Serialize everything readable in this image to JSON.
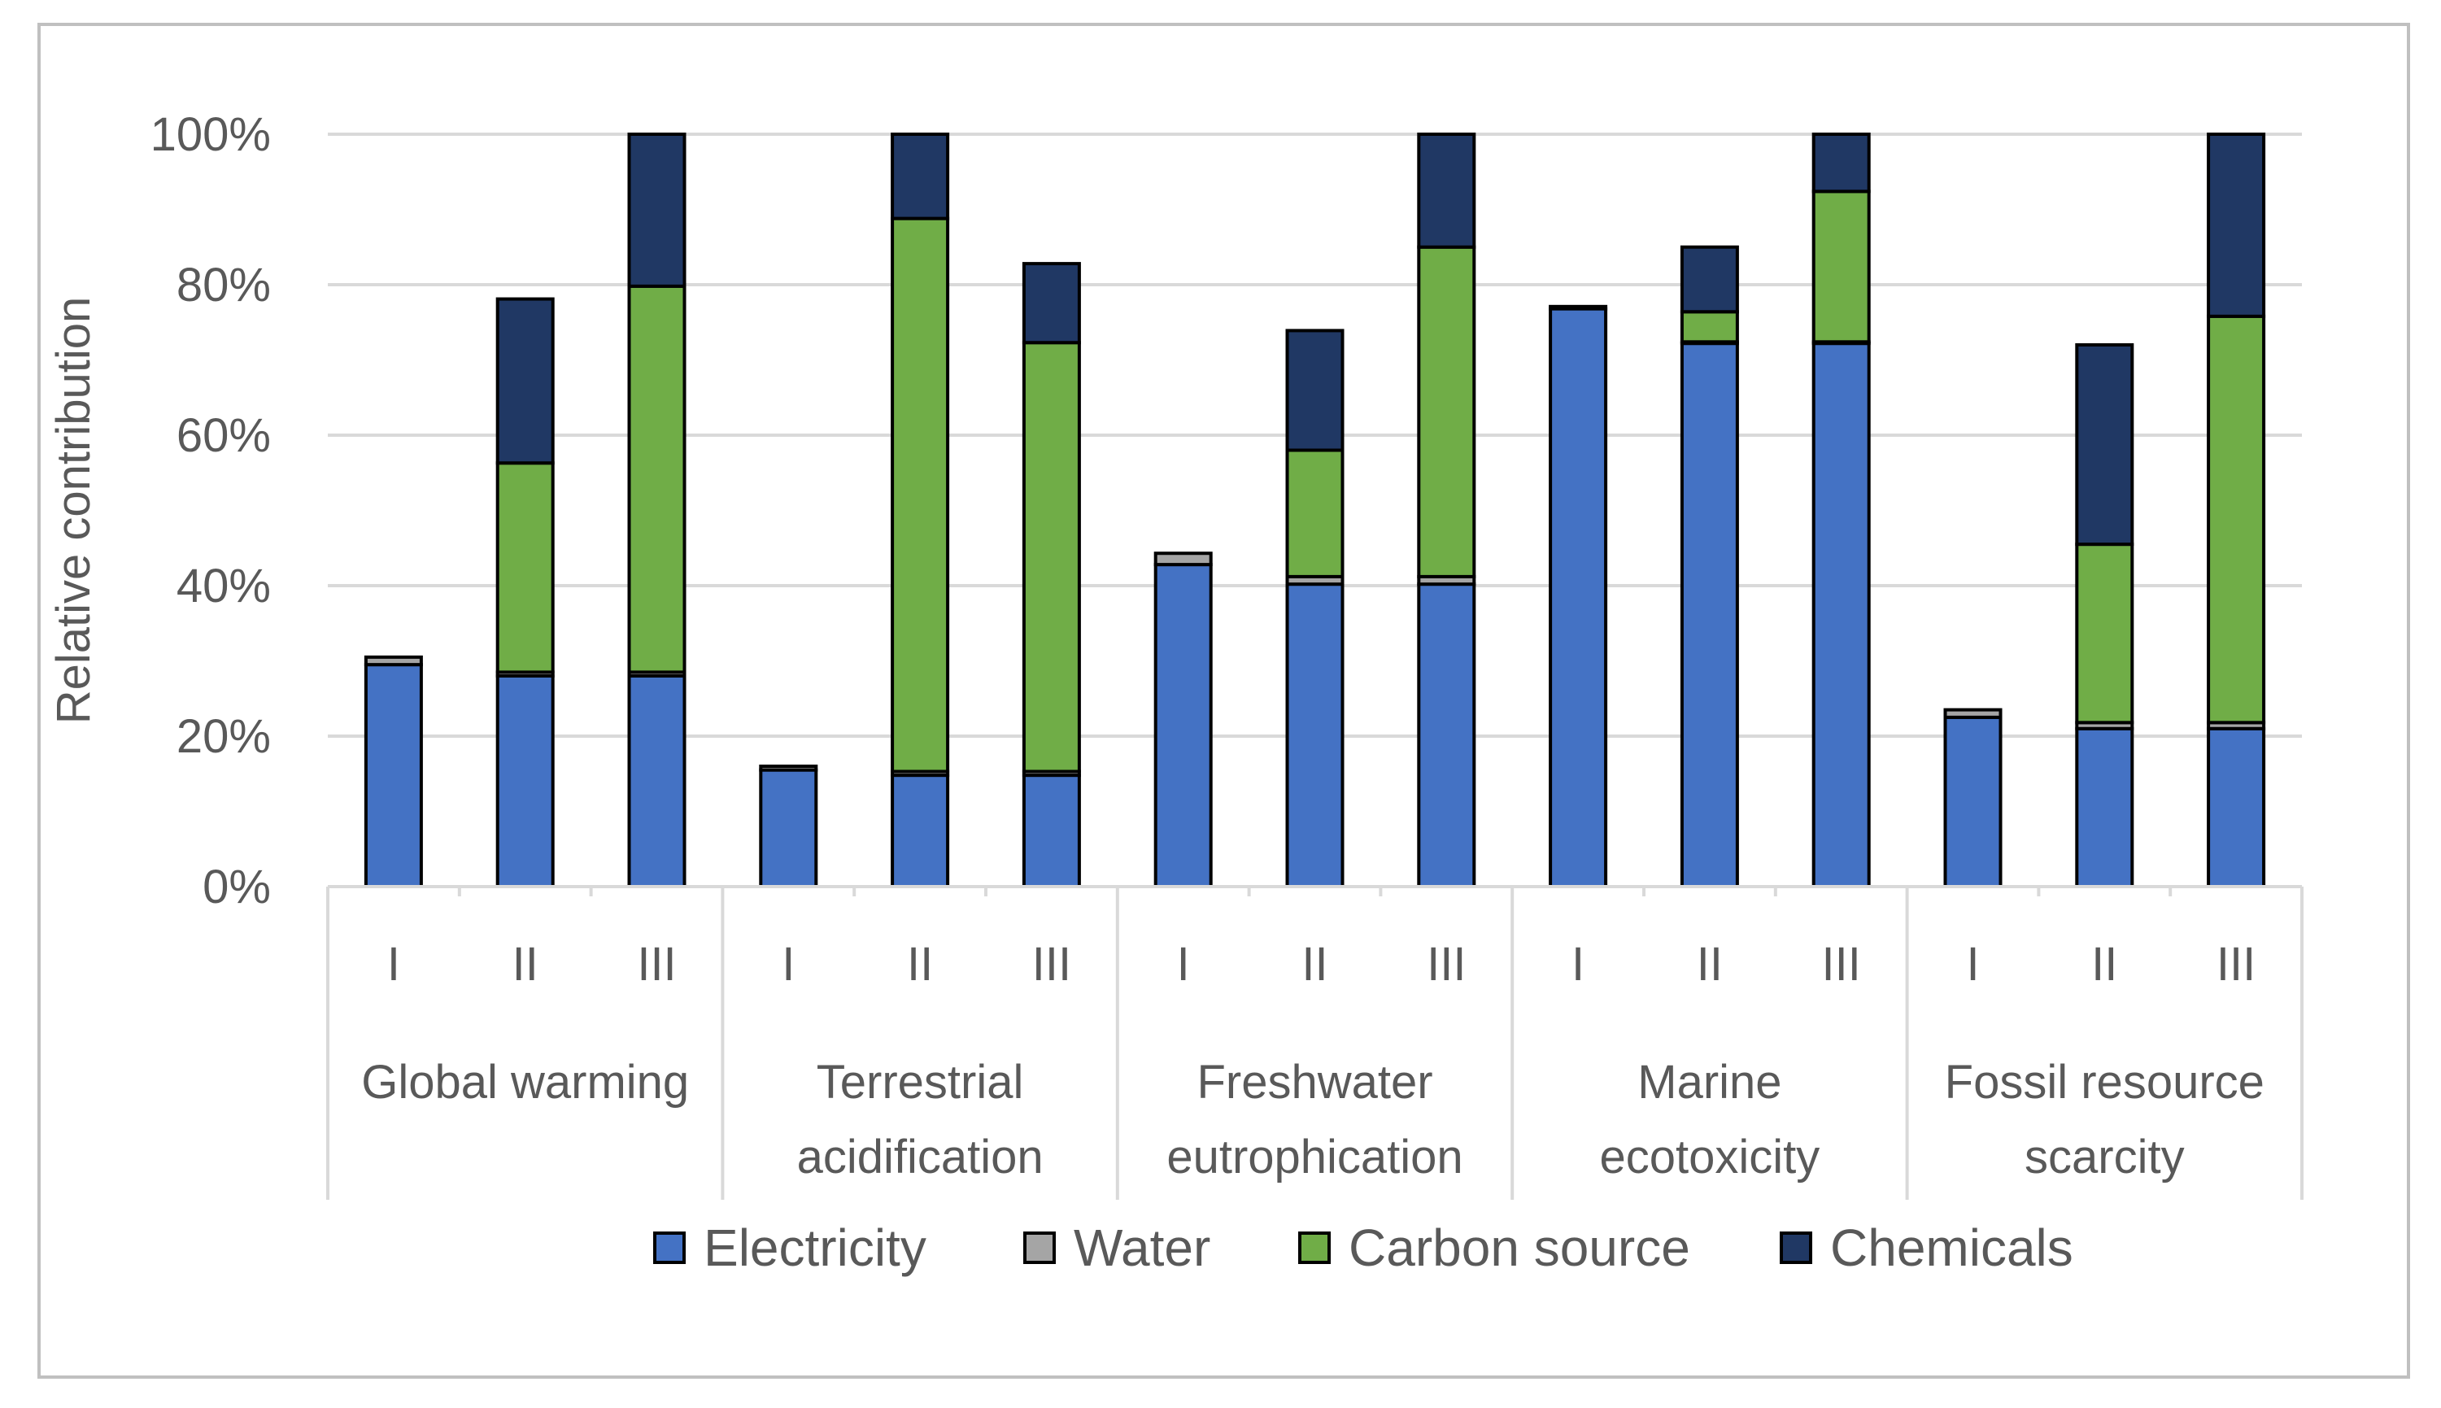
{
  "chart_data": {
    "type": "bar",
    "stacked": true,
    "ylabel": "Relative contribution",
    "ylim": [
      0,
      100
    ],
    "yticks": [
      "0%",
      "20%",
      "40%",
      "60%",
      "80%",
      "100%"
    ],
    "grid": true,
    "legend_position": "bottom",
    "groups": [
      "Global warming",
      "Terrestrial acidification",
      "Freshwater eutrophication",
      "Marine ecotoxicity",
      "Fossil resource scarcity"
    ],
    "subcategories": [
      "I",
      "II",
      "III"
    ],
    "series": [
      {
        "name": "Electricity",
        "color": "#4472C4",
        "values": [
          29.5,
          28,
          28,
          15.5,
          14.8,
          14.8,
          42.8,
          40.2,
          40.2,
          76.8,
          72.2,
          72.2,
          22.5,
          21,
          21
        ]
      },
      {
        "name": "Water",
        "color": "#A5A5A5",
        "values": [
          1,
          0.5,
          0.5,
          0.5,
          0.5,
          0.5,
          1.5,
          1,
          1,
          0.3,
          0.2,
          0.2,
          1,
          0.8,
          0.8
        ]
      },
      {
        "name": "Carbon source",
        "color": "#70AD47",
        "values": [
          0,
          27.8,
          51.3,
          0,
          73.5,
          57,
          0,
          16.8,
          43.8,
          0,
          4,
          20,
          0,
          23.7,
          54
        ]
      },
      {
        "name": "Chemicals",
        "color": "#203864",
        "values": [
          0,
          21.8,
          20.2,
          0,
          11.2,
          10.5,
          0,
          15.9,
          15,
          0,
          8.6,
          7.6,
          0,
          26.5,
          24.2
        ]
      }
    ]
  }
}
